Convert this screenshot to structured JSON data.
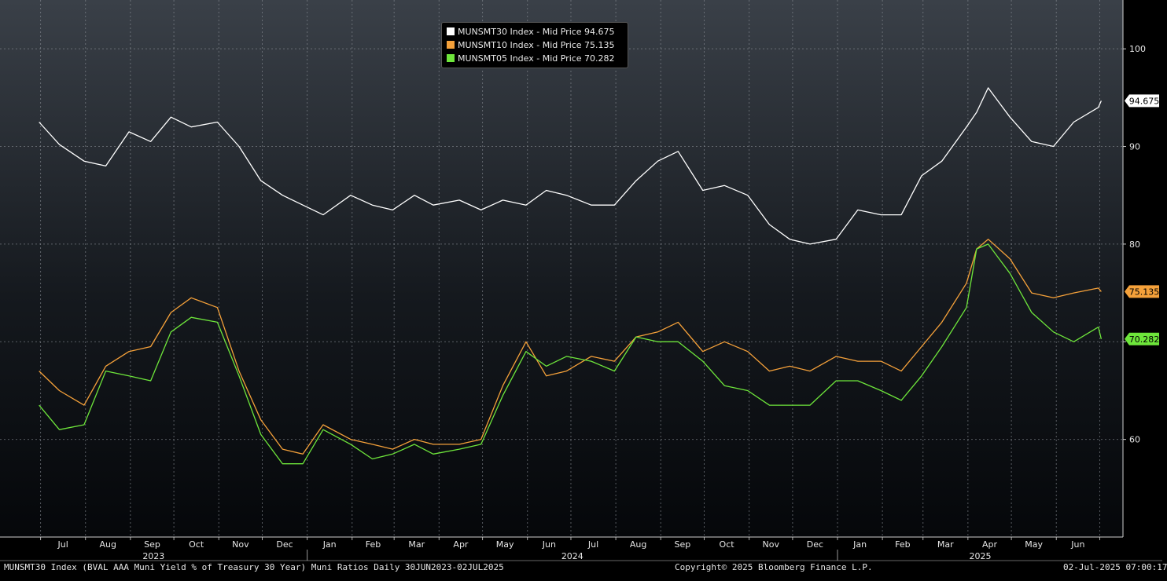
{
  "chart_data": {
    "type": "line",
    "x_range": [
      "2023-06-30",
      "2025-07-02"
    ],
    "ylim": [
      50,
      105
    ],
    "y_ticks": [
      60,
      70,
      80,
      90,
      100
    ],
    "grid": true,
    "legend_position": "top-center",
    "x_month_labels": [
      "Jul",
      "Aug",
      "Sep",
      "Oct",
      "Nov",
      "Dec",
      "Jan",
      "Feb",
      "Mar",
      "Apr",
      "May",
      "Jun",
      "Jul",
      "Aug",
      "Sep",
      "Oct",
      "Nov",
      "Dec",
      "Jan",
      "Feb",
      "Mar",
      "Apr",
      "May",
      "Jun"
    ],
    "x_year_labels": [
      "2023",
      "2024",
      "2025"
    ],
    "x_dates": [
      "2023-06-30",
      "2023-07-14",
      "2023-07-31",
      "2023-08-15",
      "2023-08-31",
      "2023-09-15",
      "2023-09-29",
      "2023-10-13",
      "2023-10-31",
      "2023-11-15",
      "2023-11-30",
      "2023-12-15",
      "2023-12-29",
      "2024-01-12",
      "2024-01-31",
      "2024-02-15",
      "2024-02-29",
      "2024-03-15",
      "2024-03-28",
      "2024-04-15",
      "2024-04-30",
      "2024-05-15",
      "2024-05-31",
      "2024-06-14",
      "2024-06-28",
      "2024-07-15",
      "2024-07-31",
      "2024-08-15",
      "2024-08-30",
      "2024-09-13",
      "2024-09-30",
      "2024-10-15",
      "2024-10-31",
      "2024-11-15",
      "2024-11-29",
      "2024-12-13",
      "2024-12-31",
      "2025-01-15",
      "2025-01-31",
      "2025-02-14",
      "2025-02-28",
      "2025-03-14",
      "2025-03-31",
      "2025-04-07",
      "2025-04-15",
      "2025-04-30",
      "2025-05-15",
      "2025-05-30",
      "2025-06-13",
      "2025-06-30",
      "2025-07-02"
    ],
    "series": [
      {
        "name": "MUNSMT30 Index - Mid Price",
        "last": "94.675",
        "color": "#ffffff",
        "values": [
          92.5,
          90.2,
          88.5,
          88.0,
          91.5,
          90.5,
          93.0,
          92.0,
          92.5,
          90.0,
          86.5,
          85.0,
          84.0,
          83.0,
          85.0,
          84.0,
          83.5,
          85.0,
          84.0,
          84.5,
          83.5,
          84.5,
          84.0,
          85.5,
          85.0,
          84.0,
          84.0,
          86.5,
          88.5,
          89.5,
          85.5,
          86.0,
          85.0,
          82.0,
          80.5,
          80.0,
          80.5,
          83.5,
          83.0,
          83.0,
          87.0,
          88.5,
          92.0,
          93.5,
          96.0,
          93.0,
          90.5,
          90.0,
          92.5,
          94.0,
          94.675
        ]
      },
      {
        "name": "MUNSMT10 Index - Mid Price",
        "last": "75.135",
        "color": "#f5a13a",
        "values": [
          67.0,
          65.0,
          63.5,
          67.5,
          69.0,
          69.5,
          73.0,
          74.5,
          73.5,
          67.0,
          62.0,
          59.0,
          58.5,
          61.5,
          60.0,
          59.5,
          59.0,
          60.0,
          59.5,
          59.5,
          60.0,
          65.5,
          70.0,
          66.5,
          67.0,
          68.5,
          68.0,
          70.5,
          71.0,
          72.0,
          69.0,
          70.0,
          69.0,
          67.0,
          67.5,
          67.0,
          68.5,
          68.0,
          68.0,
          67.0,
          69.5,
          72.0,
          76.0,
          79.5,
          80.5,
          78.5,
          75.0,
          74.5,
          75.0,
          75.5,
          75.135
        ]
      },
      {
        "name": "MUNSMT05 Index - Mid Price",
        "last": "70.282",
        "color": "#6ee63b",
        "values": [
          63.5,
          61.0,
          61.5,
          67.0,
          66.5,
          66.0,
          71.0,
          72.5,
          72.0,
          66.5,
          60.5,
          57.5,
          57.5,
          61.0,
          59.5,
          58.0,
          58.5,
          59.5,
          58.5,
          59.0,
          59.5,
          64.5,
          69.0,
          67.5,
          68.5,
          68.0,
          67.0,
          70.5,
          70.0,
          70.0,
          68.0,
          65.5,
          65.0,
          63.5,
          63.5,
          63.5,
          66.0,
          66.0,
          65.0,
          64.0,
          66.5,
          69.5,
          73.5,
          79.5,
          80.0,
          77.0,
          73.0,
          71.0,
          70.0,
          71.5,
          70.282
        ]
      }
    ]
  },
  "legend": [
    {
      "label": "MUNSMT30 Index - Mid Price 94.675",
      "color": "#ffffff"
    },
    {
      "label": "MUNSMT10 Index - Mid Price 75.135",
      "color": "#f5a13a"
    },
    {
      "label": "MUNSMT05 Index - Mid Price 70.282",
      "color": "#6ee63b"
    }
  ],
  "footer": {
    "description": "MUNSMT30 Index (BVAL AAA Muni Yield % of Treasury 30 Year) Muni Ratios  Daily 30JUN2023-02JUL2025",
    "copyright": "Copyright© 2025 Bloomberg Finance L.P.",
    "timestamp": "02-Jul-2025 07:00:17"
  }
}
